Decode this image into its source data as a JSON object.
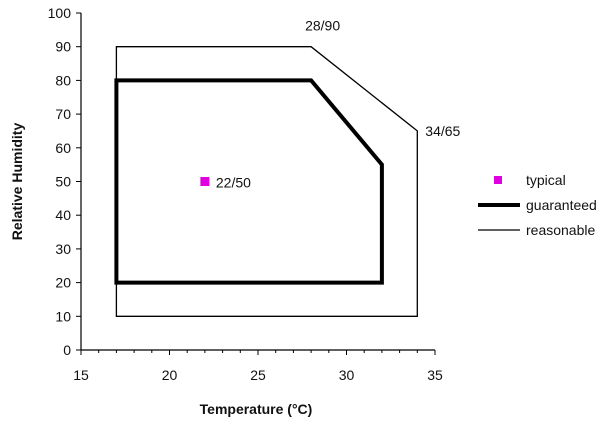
{
  "chart_data": {
    "type": "scatter",
    "title": "",
    "xlabel": "Temperature (°C)",
    "ylabel": "Relative Humidity",
    "xlim": [
      15,
      35
    ],
    "ylim": [
      0,
      100
    ],
    "xticks": [
      15,
      20,
      25,
      30,
      35
    ],
    "yticks": [
      0,
      10,
      20,
      30,
      40,
      50,
      60,
      70,
      80,
      90,
      100
    ],
    "grid": false,
    "legend_position": "right",
    "series": [
      {
        "name": "typical",
        "kind": "point",
        "color": "#e000e0",
        "points": [
          [
            22,
            50
          ]
        ]
      },
      {
        "name": "guaranteed",
        "kind": "polygon",
        "line": "thick",
        "color": "#000000",
        "points": [
          [
            17,
            20
          ],
          [
            17,
            80
          ],
          [
            28,
            80
          ],
          [
            32,
            55
          ],
          [
            32,
            20
          ]
        ]
      },
      {
        "name": "reasonable",
        "kind": "polygon",
        "line": "thin",
        "color": "#000000",
        "points": [
          [
            17,
            10
          ],
          [
            17,
            90
          ],
          [
            28,
            90
          ],
          [
            34,
            65
          ],
          [
            34,
            10
          ]
        ]
      }
    ],
    "annotations": [
      {
        "text": "28/90",
        "x": 28,
        "y": 90
      },
      {
        "text": "34/65",
        "x": 34,
        "y": 65
      },
      {
        "text": "22/50",
        "x": 22,
        "y": 50
      }
    ]
  }
}
